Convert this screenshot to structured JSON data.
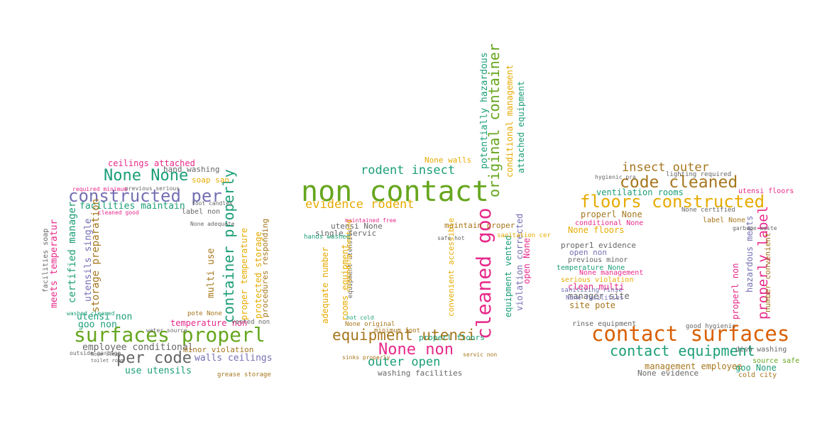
{
  "palette": {
    "green": "#66a61e",
    "teal": "#1b9e77",
    "orange": "#d95f02",
    "purple": "#7570b3",
    "pink": "#e7298a",
    "gold": "#e6ab02",
    "brown": "#a6761d",
    "gray": "#666666"
  },
  "words": [
    {
      "text": "non contact",
      "color": "green"
    },
    {
      "text": "contact surfaces",
      "color": "orange"
    },
    {
      "text": "surfaces properl",
      "color": "green"
    },
    {
      "text": "constructed per",
      "color": "purple"
    },
    {
      "text": "cleaned goo",
      "color": "pink"
    },
    {
      "text": "equipment utensi",
      "color": "brown"
    },
    {
      "text": "contact equipment",
      "color": "teal"
    },
    {
      "text": "floors constructed",
      "color": "gold"
    },
    {
      "text": "code cleaned",
      "color": "brown"
    },
    {
      "text": "None None",
      "color": "teal"
    },
    {
      "text": "per code",
      "color": "gray"
    },
    {
      "text": "None non",
      "color": "pink"
    },
    {
      "text": "container properly",
      "color": "teal"
    },
    {
      "text": "original container",
      "color": "green"
    },
    {
      "text": "properly label",
      "color": "pink"
    },
    {
      "text": "rodent insect",
      "color": "teal"
    },
    {
      "text": "evidence rodent",
      "color": "gold"
    },
    {
      "text": "insect outer",
      "color": "brown"
    },
    {
      "text": "outer open",
      "color": "teal"
    },
    {
      "text": "ceilings attached",
      "color": "pink"
    },
    {
      "text": "facilities maintain",
      "color": "teal"
    },
    {
      "text": "employee conditional",
      "color": "gray"
    },
    {
      "text": "use utensils",
      "color": "teal"
    },
    {
      "text": "walls ceilings",
      "color": "purple"
    },
    {
      "text": "meets temperatur",
      "color": "pink"
    },
    {
      "text": "certified manager",
      "color": "teal"
    },
    {
      "text": "utensils single",
      "color": "purple"
    },
    {
      "text": "storage preparation",
      "color": "brown"
    },
    {
      "text": "multi use",
      "color": "brown"
    },
    {
      "text": "proper temperature",
      "color": "gold"
    },
    {
      "text": "protected storage",
      "color": "gold"
    },
    {
      "text": "procedures responding",
      "color": "brown"
    },
    {
      "text": "utensi non",
      "color": "teal"
    },
    {
      "text": "goo non",
      "color": "teal"
    },
    {
      "text": "temperature non",
      "color": "pink"
    },
    {
      "text": "minor violation",
      "color": "brown"
    },
    {
      "text": "hand washing",
      "color": "gray"
    },
    {
      "text": "soap san",
      "color": "gold"
    },
    {
      "text": "label non",
      "color": "gray"
    },
    {
      "text": "single servic",
      "color": "gray"
    },
    {
      "text": "utensi None",
      "color": "gray"
    },
    {
      "text": "maintain proper",
      "color": "brown"
    },
    {
      "text": "None walls",
      "color": "gold"
    },
    {
      "text": "adequate number",
      "color": "gold"
    },
    {
      "text": "rooms equipment",
      "color": "gold"
    },
    {
      "text": "convenient accessible",
      "color": "gold"
    },
    {
      "text": "potentially hazardous",
      "color": "teal"
    },
    {
      "text": "conditional management",
      "color": "gold"
    },
    {
      "text": "attached equipment",
      "color": "teal"
    },
    {
      "text": "equipment vented",
      "color": "teal"
    },
    {
      "text": "violation corrected",
      "color": "purple"
    },
    {
      "text": "open None",
      "color": "pink"
    },
    {
      "text": "properl floors",
      "color": "teal"
    },
    {
      "text": "washing facilities",
      "color": "gray"
    },
    {
      "text": "ventilation rooms",
      "color": "teal"
    },
    {
      "text": "properl None",
      "color": "brown"
    },
    {
      "text": "None floors",
      "color": "gold"
    },
    {
      "text": "proper1 evidence",
      "color": "gray"
    },
    {
      "text": "open non",
      "color": "purple"
    },
    {
      "text": "clean multi",
      "color": "pink"
    },
    {
      "text": "manager site",
      "color": "gray"
    },
    {
      "text": "site pote",
      "color": "brown"
    },
    {
      "text": "management employee",
      "color": "brown"
    },
    {
      "text": "goo None",
      "color": "teal"
    },
    {
      "text": "None evidence",
      "color": "gray"
    },
    {
      "text": "properl non",
      "color": "pink"
    },
    {
      "text": "hazardous meets",
      "color": "purple"
    },
    {
      "text": "number convenient",
      "color": "brown"
    },
    {
      "text": "utensi floors",
      "color": "pink"
    },
    {
      "text": "None certified",
      "color": "gray"
    },
    {
      "text": "previous minor",
      "color": "gray"
    },
    {
      "text": "temperature None",
      "color": "teal"
    },
    {
      "text": "None management",
      "color": "pink"
    },
    {
      "text": "serious violation",
      "color": "gold"
    },
    {
      "text": "sanitizing rinse",
      "color": "purple"
    },
    {
      "text": "None facilities",
      "color": "purple"
    },
    {
      "text": "rinse equipment",
      "color": "gray"
    },
    {
      "text": "conditional None",
      "color": "pink"
    },
    {
      "text": "cold city",
      "color": "brown"
    },
    {
      "text": "dish washing",
      "color": "gray"
    },
    {
      "text": "source safe",
      "color": "green"
    },
    {
      "text": "lighting required",
      "color": "gray"
    },
    {
      "text": "good hygienic",
      "color": "gray"
    },
    {
      "text": "pote None",
      "color": "brown"
    },
    {
      "text": "vented non",
      "color": "gray"
    },
    {
      "text": "grease storage",
      "color": "brown"
    },
    {
      "text": "None adequate",
      "color": "gray"
    },
    {
      "text": "cleaned good",
      "color": "pink"
    },
    {
      "text": "facilities soap",
      "color": "gray"
    },
    {
      "text": "previous serious",
      "color": "gray"
    },
    {
      "text": "foot candles",
      "color": "gray"
    },
    {
      "text": "hands washed",
      "color": "teal"
    },
    {
      "text": "hot cold",
      "color": "teal"
    },
    {
      "text": "minimum foot",
      "color": "brown"
    },
    {
      "text": "maintained free",
      "color": "pink"
    },
    {
      "text": "sanitation cer",
      "color": "gold"
    },
    {
      "text": "safe hot",
      "color": "gray"
    },
    {
      "text": "servic non",
      "color": "brown"
    },
    {
      "text": "None original",
      "color": "brown"
    },
    {
      "text": "sinks properly",
      "color": "brown"
    },
    {
      "text": "equipment utensils",
      "color": "gray"
    },
    {
      "text": "responding vomiting",
      "color": "gold"
    },
    {
      "text": "washed cleaned",
      "color": "teal"
    },
    {
      "text": "outside garbage",
      "color": "gray"
    },
    {
      "text": "water source",
      "color": "gray"
    },
    {
      "text": "garbage waste",
      "color": "gray"
    },
    {
      "text": "hygienic pra",
      "color": "gray"
    },
    {
      "text": "required minimum",
      "color": "pink"
    },
    {
      "text": "None clean",
      "color": "gray"
    },
    {
      "text": "toilet room",
      "color": "gray"
    },
    {
      "text": "label None",
      "color": "brown"
    }
  ]
}
